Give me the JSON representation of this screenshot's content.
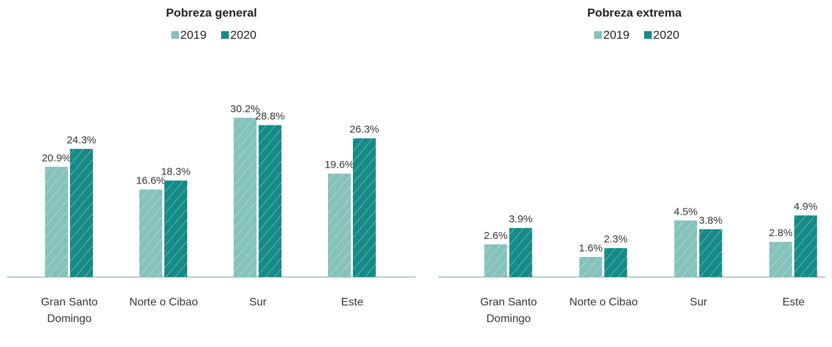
{
  "chart_data": [
    {
      "type": "bar",
      "title": "Pobreza general",
      "categories": [
        "Gran Santo Domingo",
        "Norte o Cibao",
        "Sur",
        "Este"
      ],
      "series": [
        {
          "name": "2019",
          "color": "#84c2bb",
          "values": [
            20.9,
            16.6,
            30.2,
            19.6
          ],
          "value_labels": [
            "20.9%",
            "16.6%",
            "30.2%",
            "19.6%"
          ]
        },
        {
          "name": "2020",
          "color": "#168a87",
          "values": [
            24.3,
            18.3,
            28.8,
            26.3
          ],
          "value_labels": [
            "24.3%",
            "18.3%",
            "28.8%",
            "26.3%"
          ]
        }
      ]
    },
    {
      "type": "bar",
      "title": "Pobreza extrema",
      "categories": [
        "Gran Santo Domingo",
        "Norte o Cibao",
        "Sur",
        "Este"
      ],
      "series": [
        {
          "name": "2019",
          "color": "#84c2bb",
          "values": [
            2.6,
            1.6,
            4.5,
            2.8
          ],
          "value_labels": [
            "2.6%",
            "1.6%",
            "4.5%",
            "2.8%"
          ]
        },
        {
          "name": "2020",
          "color": "#168a87",
          "values": [
            3.9,
            2.3,
            3.8,
            4.9
          ],
          "value_labels": [
            "3.9%",
            "2.3%",
            "3.8%",
            "4.9%"
          ]
        }
      ]
    }
  ]
}
